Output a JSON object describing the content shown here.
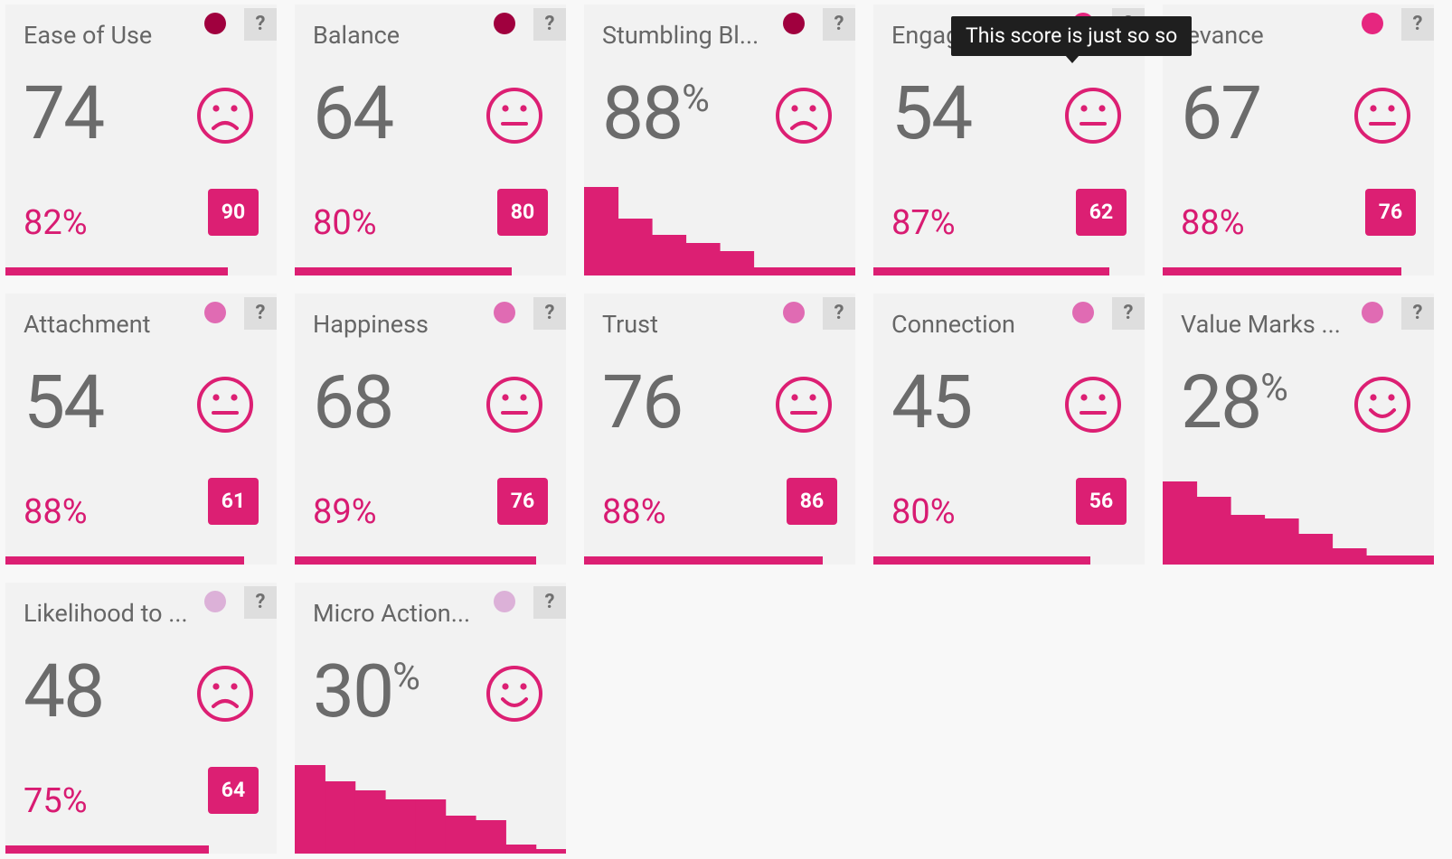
{
  "accent": "#dc1f73",
  "help_label": "?",
  "tooltip": "This score is just so so",
  "cards": [
    {
      "title": "Ease of Use",
      "score": "74",
      "unit": "",
      "face": "sad",
      "dot": "#a0003e",
      "sub": "82%",
      "badge": "90",
      "bar": 0.82
    },
    {
      "title": "Balance",
      "score": "64",
      "unit": "",
      "face": "neutral",
      "dot": "#a0003e",
      "sub": "80%",
      "badge": "80",
      "bar": 0.8
    },
    {
      "title": "Stumbling Bl...",
      "score": "88",
      "unit": "%",
      "face": "sad",
      "dot": "#a0003e",
      "hist": [
        0.98,
        0.63,
        0.45,
        0.36,
        0.27,
        0.09,
        0.09,
        0.09
      ]
    },
    {
      "title": "Engage",
      "score": "54",
      "unit": "",
      "face": "neutral",
      "dot": "#e6267f",
      "sub": "87%",
      "badge": "62",
      "bar": 0.87
    },
    {
      "title": "Relevance",
      "title_display": "levance",
      "score": "67",
      "unit": "",
      "face": "neutral",
      "dot": "#e6267f",
      "sub": "88%",
      "badge": "76",
      "bar": 0.88
    },
    {
      "title": "Attachment",
      "score": "54",
      "unit": "",
      "face": "neutral",
      "dot": "#e06bb3",
      "sub": "88%",
      "badge": "61",
      "bar": 0.88
    },
    {
      "title": "Happiness",
      "score": "68",
      "unit": "",
      "face": "neutral",
      "dot": "#e06bb3",
      "sub": "89%",
      "badge": "76",
      "bar": 0.89
    },
    {
      "title": "Trust",
      "score": "76",
      "unit": "",
      "face": "neutral",
      "dot": "#e06bb3",
      "sub": "88%",
      "badge": "86",
      "bar": 0.88
    },
    {
      "title": "Connection",
      "score": "45",
      "unit": "",
      "face": "neutral",
      "dot": "#e06bb3",
      "sub": "80%",
      "badge": "56",
      "bar": 0.8
    },
    {
      "title": "Value Marks ...",
      "score": "28",
      "unit": "%",
      "face": "happy",
      "dot": "#e06bb3",
      "hist": [
        0.92,
        0.75,
        0.55,
        0.51,
        0.34,
        0.18,
        0.1,
        0.1
      ]
    },
    {
      "title": "Likelihood to ...",
      "score": "48",
      "unit": "",
      "face": "sad",
      "dot": "#dcb1d8",
      "sub": "75%",
      "badge": "64",
      "bar": 0.75
    },
    {
      "title": "Micro Action...",
      "score": "30",
      "unit": "%",
      "face": "happy",
      "dot": "#dcb1d8",
      "hist": [
        0.98,
        0.8,
        0.7,
        0.6,
        0.6,
        0.42,
        0.37,
        0.1,
        0.05
      ]
    }
  ]
}
